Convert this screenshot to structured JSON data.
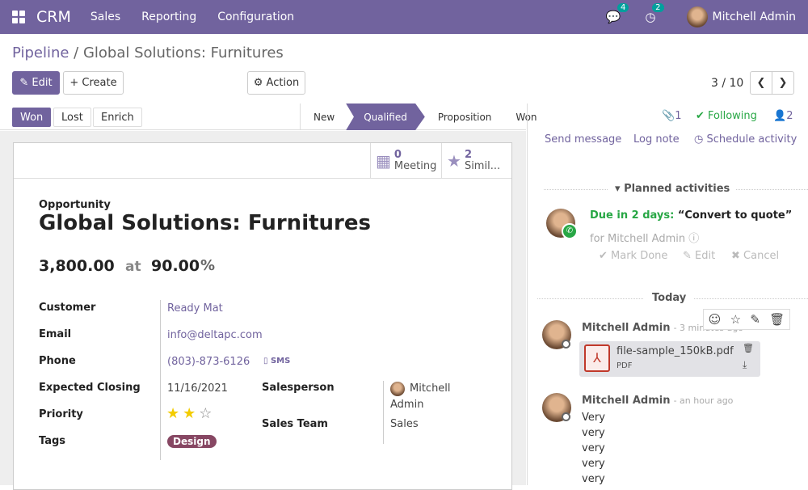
{
  "nav": {
    "brand": "CRM",
    "menus": [
      "Sales",
      "Reporting",
      "Configuration"
    ],
    "messages_count": "4",
    "activities_count": "2",
    "user": "Mitchell Admin"
  },
  "breadcrumb": {
    "parent": "Pipeline",
    "current": "Global Solutions: Furnitures"
  },
  "toolbar": {
    "edit": "Edit",
    "create": "Create",
    "action": "Action",
    "pager": "3 / 10"
  },
  "status": {
    "won": "Won",
    "lost": "Lost",
    "enrich": "Enrich",
    "stages": [
      "New",
      "Qualified",
      "Proposition",
      "Won"
    ],
    "active_stage": "Qualified"
  },
  "smart": {
    "meeting_count": "0",
    "meeting_label": "Meeting",
    "similar_count": "2",
    "similar_label": "Simil..."
  },
  "form": {
    "type": "Opportunity",
    "title": "Global Solutions: Furnitures",
    "revenue": "3,800.00",
    "at": "at",
    "probability": "90.00",
    "pct": "%",
    "customer_label": "Customer",
    "customer": "Ready Mat",
    "email_label": "Email",
    "email": "info@deltapc.com",
    "phone_label": "Phone",
    "phone": "(803)-873-6126",
    "sms": "SMS",
    "closing_label": "Expected Closing",
    "closing": "11/16/2021",
    "priority_label": "Priority",
    "priority": 2,
    "priority_max": 3,
    "tags_label": "Tags",
    "tag": "Design",
    "salesperson_label": "Salesperson",
    "salesperson": "Mitchell Admin",
    "team_label": "Sales Team",
    "team": "Sales"
  },
  "chatter": {
    "attachments": "1",
    "following": "Following",
    "followers": "2",
    "send": "Send message",
    "log": "Log note",
    "schedule": "Schedule activity",
    "planned": "Planned activities",
    "due": "Due in 2 days:",
    "activity": "“Convert to quote”",
    "for": "for Mitchell Admin",
    "mark_done": "Mark Done",
    "edit": "Edit",
    "cancel": "Cancel",
    "today": "Today",
    "messages": [
      {
        "author": "Mitchell Admin",
        "time": "- 3 minutes ago",
        "file": "file-sample_150kB.pdf",
        "file_type": "PDF"
      },
      {
        "author": "Mitchell Admin",
        "time": "- an hour ago",
        "body": [
          "Very",
          "very",
          "very",
          "very",
          "very"
        ]
      }
    ]
  }
}
